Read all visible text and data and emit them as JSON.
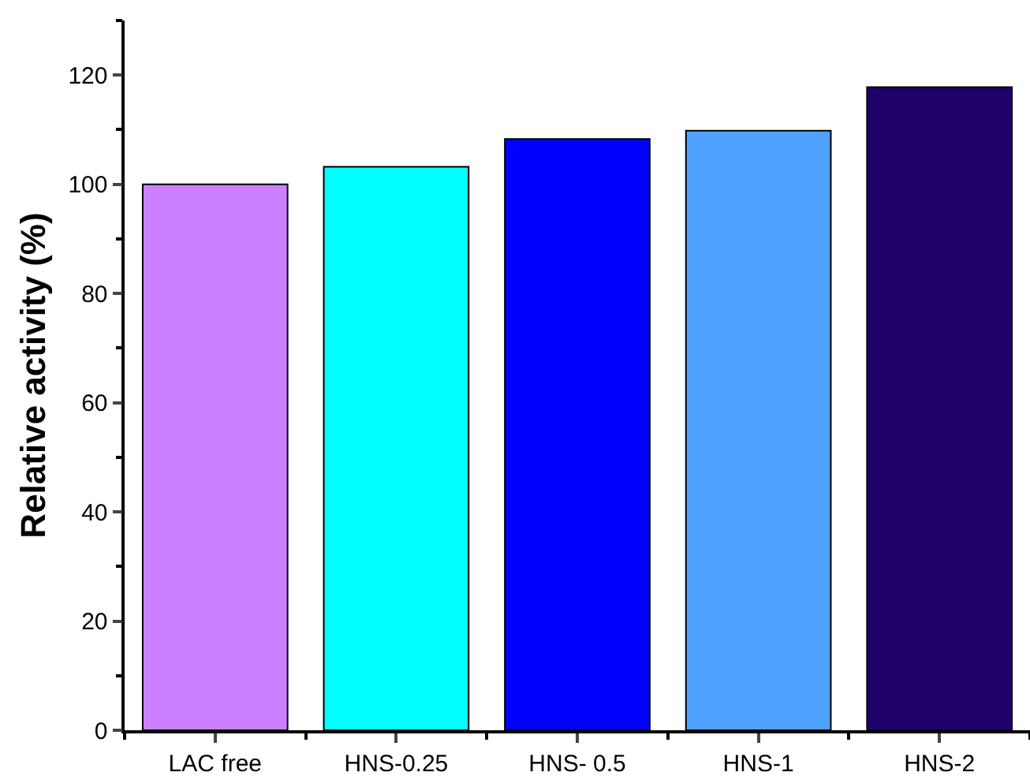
{
  "chart_data": {
    "type": "bar",
    "ylabel": "Relative activity (%)",
    "categories": [
      "LAC free",
      "HNS-0.25",
      "HNS- 0.5",
      "HNS-1",
      "HNS-2"
    ],
    "values": [
      100,
      103.2,
      108.3,
      109.8,
      117.8
    ],
    "colors": [
      "#cc80ff",
      "#00ffff",
      "#0000ff",
      "#4fa3ff",
      "#20006b"
    ],
    "ylim": [
      0,
      130
    ],
    "yticks": [
      0,
      20,
      40,
      60,
      80,
      100,
      120
    ],
    "grid": false
  }
}
